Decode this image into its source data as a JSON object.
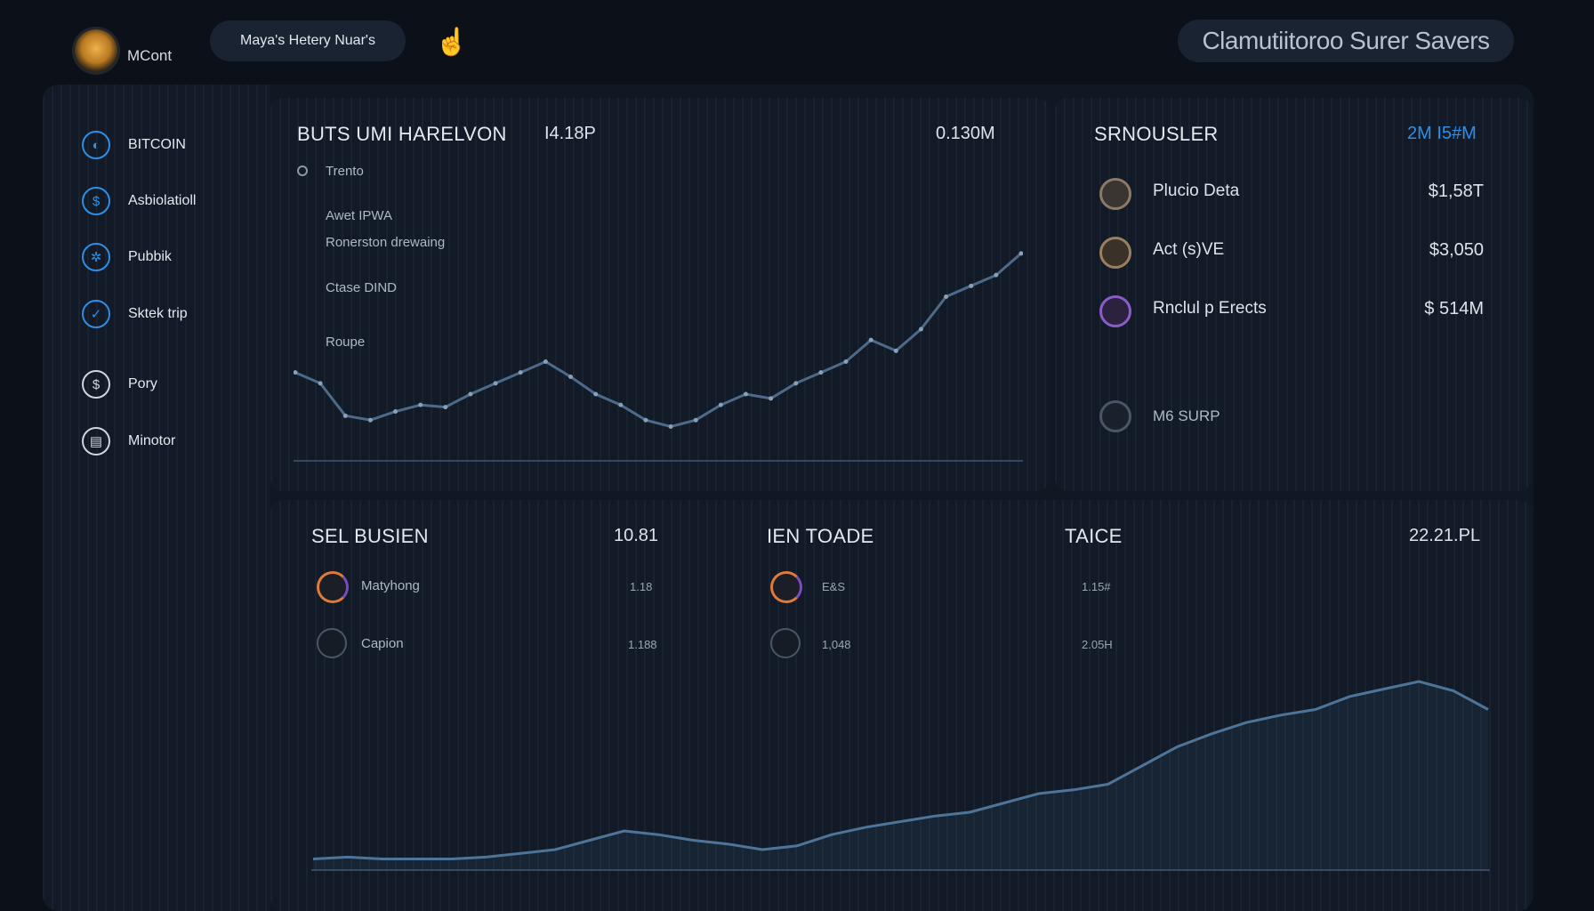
{
  "header": {
    "brand": "MCont",
    "user_pill": "Maya's Hetery Nuar's",
    "hand_glyph": "☝",
    "status_pill": "Clamutiitoroo Surer Savers"
  },
  "sidebar": {
    "items": [
      {
        "label": "BITCOIN",
        "glyph": "◐",
        "color": "#2f8fe6"
      },
      {
        "label": "Asbiolatioll",
        "glyph": "$",
        "color": "#2f8fe6"
      },
      {
        "label": "Pubbik",
        "glyph": "✲",
        "color": "#2f8fe6"
      },
      {
        "label": "Sktek trip",
        "glyph": "✓",
        "color": "#2f8fe6"
      },
      {
        "label": "Pory",
        "glyph": "$",
        "color": "#cfd6de"
      },
      {
        "label": "Minotor",
        "glyph": "▤",
        "color": "#cfd6de"
      }
    ]
  },
  "top_chart": {
    "title": "BUTS UMI HARELVON",
    "value_left": "I4.18P",
    "value_right": "0.130M",
    "legend_label": "Trento",
    "annotations": [
      "Awet IPWA",
      "Ronerston drewaing",
      "Ctase DIND",
      "Roupe"
    ],
    "color": "#4d6a8a"
  },
  "watchlist": {
    "title": "SRNOUSLER",
    "total": "2M I5#M",
    "total_color": "#2f8fe6",
    "items": [
      {
        "name": "Plucio Deta",
        "value": "$1,58T",
        "ring": "#8a7a66"
      },
      {
        "name": "Act (s)VE",
        "value": "$3,050",
        "ring": "#9a8060"
      },
      {
        "name": "Rnclul p Erects",
        "value": "$ 514M",
        "ring": "#8b5cc8"
      }
    ],
    "footer_label": "M6 SURP"
  },
  "bottom": {
    "col1_title": "SEL BUSIEN",
    "col1_value": "10.81",
    "col1_rows": [
      {
        "label": "Matyhong",
        "value": "1.18"
      },
      {
        "label": "Capion",
        "value": "1.188"
      }
    ],
    "col2_title": "IEN TOADE",
    "col2_rows": [
      {
        "label": "E&S",
        "value": "1.15#"
      },
      {
        "label": "1,048",
        "value": "2.05H"
      }
    ],
    "col3_title": "TAICE",
    "col3_value": "22.21.PL",
    "line_color": "#4e7499"
  },
  "chart_data": [
    {
      "type": "line",
      "title": "BUTS UMI HARELVON",
      "x": [
        0,
        1,
        2,
        3,
        4,
        5,
        6,
        7,
        8,
        9,
        10,
        11,
        12,
        13,
        14,
        15,
        16,
        17,
        18,
        19,
        20,
        21,
        22,
        23,
        24,
        25,
        26,
        27,
        28,
        29
      ],
      "values": [
        0.4,
        0.35,
        0.2,
        0.18,
        0.22,
        0.25,
        0.24,
        0.3,
        0.35,
        0.4,
        0.45,
        0.38,
        0.3,
        0.25,
        0.18,
        0.15,
        0.18,
        0.25,
        0.3,
        0.28,
        0.35,
        0.4,
        0.45,
        0.55,
        0.5,
        0.6,
        0.75,
        0.8,
        0.85,
        0.95
      ],
      "ylim": [
        0,
        1.2
      ],
      "grid": false
    },
    {
      "type": "area",
      "title": "",
      "x": [
        0,
        1,
        2,
        3,
        4,
        5,
        6,
        7,
        8,
        9,
        10,
        11,
        12,
        13,
        14,
        15,
        16,
        17,
        18,
        19,
        20,
        21,
        22,
        23,
        24,
        25,
        26,
        27,
        28,
        29,
        30,
        31,
        32,
        33,
        34
      ],
      "values": [
        0.05,
        0.06,
        0.05,
        0.05,
        0.05,
        0.06,
        0.08,
        0.1,
        0.15,
        0.2,
        0.18,
        0.15,
        0.13,
        0.1,
        0.12,
        0.18,
        0.22,
        0.25,
        0.28,
        0.3,
        0.35,
        0.4,
        0.42,
        0.45,
        0.55,
        0.65,
        0.72,
        0.78,
        0.82,
        0.85,
        0.92,
        0.96,
        1.0,
        0.95,
        0.85
      ],
      "ylim": [
        0,
        1.2
      ],
      "grid": false
    }
  ]
}
